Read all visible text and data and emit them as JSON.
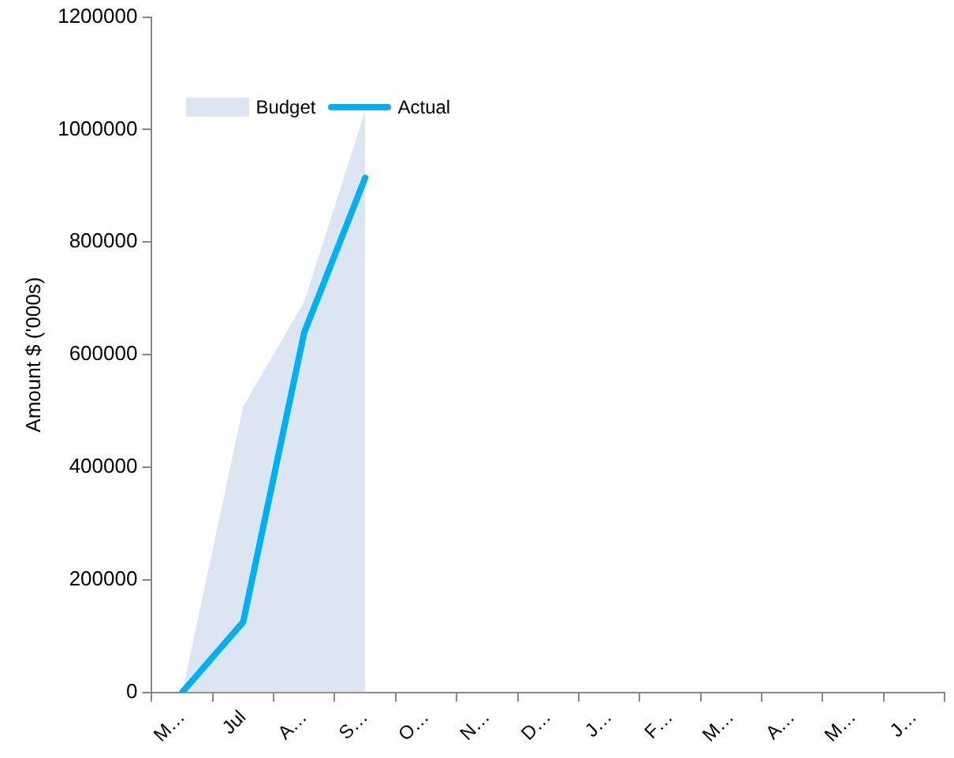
{
  "chart_data": {
    "type": "area",
    "ylabel": "Amount $ ('000s)",
    "categories": [
      "M…",
      "Jul",
      "A…",
      "S…",
      "O…",
      "N…",
      "D…",
      "J…",
      "F…",
      "M…",
      "A…",
      "M…",
      "J…"
    ],
    "series": [
      {
        "name": "Budget",
        "color": "#dce6f2",
        "values": [
          0,
          508000,
          694000,
          1033000,
          null,
          null,
          null,
          null,
          null,
          null,
          null,
          null,
          null
        ]
      },
      {
        "name": "Actual",
        "type": "line",
        "color": "#00b0f0",
        "values": [
          0,
          125000,
          639000,
          914000,
          null,
          null,
          null,
          null,
          null,
          null,
          null,
          null,
          null
        ]
      }
    ],
    "ylim": [
      0,
      1200000
    ],
    "yticks": [
      0,
      200000,
      400000,
      600000,
      800000,
      1000000,
      1200000
    ],
    "grid": false,
    "legend": "top left",
    "marker": "none",
    "line_style": "solid"
  }
}
